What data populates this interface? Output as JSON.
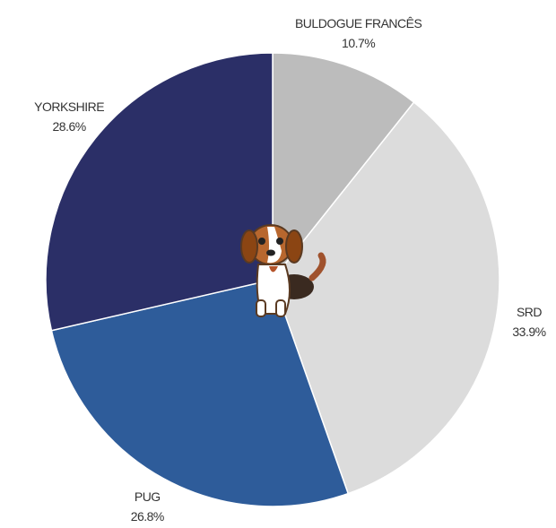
{
  "chart_data": {
    "type": "pie",
    "categories": [
      "BULDOGUE FRANCÊS",
      "SRD",
      "PUG",
      "YORKSHIRE"
    ],
    "values": [
      10.7,
      33.9,
      26.8,
      28.6
    ],
    "value_labels": [
      "10.7%",
      "33.9%",
      "26.8%",
      "28.6%"
    ],
    "colors": [
      "#bcbcbc",
      "#dcdcdc",
      "#2e5c9a",
      "#2b2f67"
    ]
  }
}
